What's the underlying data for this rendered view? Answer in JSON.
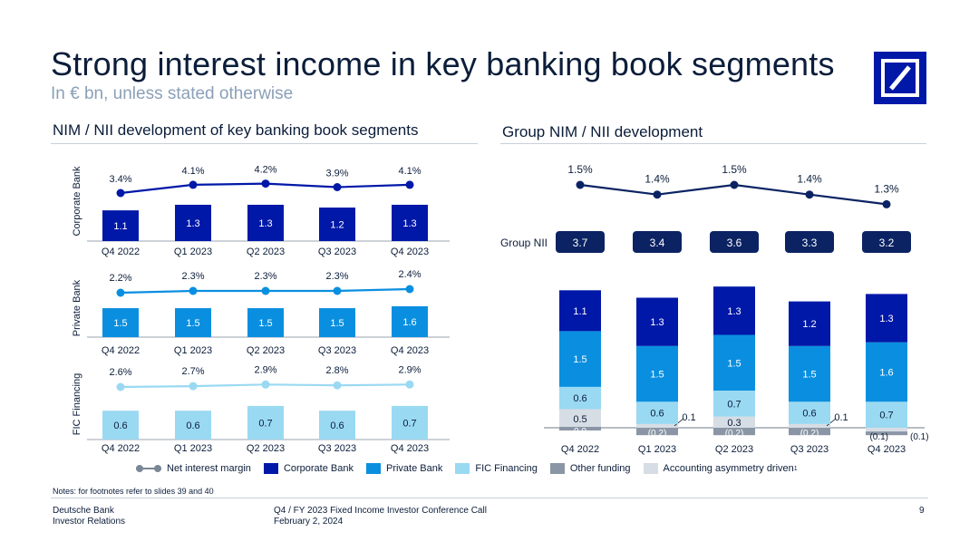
{
  "title": "Strong interest income in key banking book segments",
  "subtitle": "In € bn, unless stated otherwise",
  "left_section_title": "NIM / NII development of key banking book segments",
  "right_section_title": "Group NIM / NII development",
  "colors": {
    "corporate_bank": "#0018a8",
    "private_bank": "#0a8fe0",
    "fic_financing": "#9ad9f2",
    "other_funding": "#8a96a6",
    "accounting_asymmetry": "#d7dde4",
    "nim_line_corporate": "#0018a8",
    "nim_line_private": "#0a8fe0",
    "nim_line_fic": "#9ad9f2",
    "nim_line_group": "#0b2363",
    "group_nii_pill": "#0b2363",
    "legend_line": "#7a8796"
  },
  "logo": {
    "name": "deutsche-bank-logo"
  },
  "chart_data": [
    {
      "type": "bar",
      "panel": "Corporate Bank",
      "ylabel": "Corporate Bank",
      "categories": [
        "Q4 2022",
        "Q1 2023",
        "Q2 2023",
        "Q3 2023",
        "Q4 2023"
      ],
      "values": [
        1.1,
        1.3,
        1.3,
        1.2,
        1.3
      ],
      "value_labels": [
        "1.1",
        "1.3",
        "1.3",
        "1.2",
        "1.3"
      ],
      "nim_values": [
        3.4,
        4.1,
        4.2,
        3.9,
        4.1
      ],
      "nim_labels": [
        "3.4%",
        "4.1%",
        "4.2%",
        "3.9%",
        "4.1%"
      ]
    },
    {
      "type": "bar",
      "panel": "Private Bank",
      "ylabel": "Private Bank",
      "categories": [
        "Q4 2022",
        "Q1 2023",
        "Q2 2023",
        "Q3 2023",
        "Q4 2023"
      ],
      "values": [
        1.5,
        1.5,
        1.5,
        1.5,
        1.6
      ],
      "value_labels": [
        "1.5",
        "1.5",
        "1.5",
        "1.5",
        "1.6"
      ],
      "nim_values": [
        2.2,
        2.3,
        2.3,
        2.3,
        2.4
      ],
      "nim_labels": [
        "2.2%",
        "2.3%",
        "2.3%",
        "2.3%",
        "2.4%"
      ]
    },
    {
      "type": "bar",
      "panel": "FIC Financing",
      "ylabel": "FIC Financing",
      "categories": [
        "Q4 2022",
        "Q1 2023",
        "Q2 2023",
        "Q3 2023",
        "Q4 2023"
      ],
      "values": [
        0.6,
        0.6,
        0.7,
        0.6,
        0.7
      ],
      "value_labels": [
        "0.6",
        "0.6",
        "0.7",
        "0.6",
        "0.7"
      ],
      "nim_values": [
        2.6,
        2.7,
        2.9,
        2.8,
        2.9
      ],
      "nim_labels": [
        "2.6%",
        "2.7%",
        "2.9%",
        "2.8%",
        "2.9%"
      ]
    },
    {
      "type": "bar",
      "stacked": true,
      "panel": "Group",
      "categories": [
        "Q4 2022",
        "Q1 2023",
        "Q2 2023",
        "Q3 2023",
        "Q4 2023"
      ],
      "group_nii_label": "Group NII",
      "group_nii": [
        "3.7",
        "3.4",
        "3.6",
        "3.3",
        "3.2"
      ],
      "nim_values": [
        1.5,
        1.4,
        1.5,
        1.4,
        1.3
      ],
      "nim_labels": [
        "1.5%",
        "1.4%",
        "1.5%",
        "1.4%",
        "1.3%"
      ],
      "series": [
        {
          "name": "Accounting asymmetry driven",
          "values": [
            0.5,
            0.1,
            0.3,
            0.1,
            -0.1
          ],
          "labels": [
            "0.5",
            "0.1",
            "0.3",
            "0.1",
            "(0.1)"
          ],
          "color_key": "accounting_asymmetry"
        },
        {
          "name": "Other funding",
          "values": [
            0.0,
            -0.2,
            -0.2,
            -0.2,
            -0.1
          ],
          "labels": [
            "0.0",
            "(0.2)",
            "(0.2)",
            "(0.2)",
            "(0.1)"
          ],
          "color_key": "other_funding"
        },
        {
          "name": "FIC Financing",
          "values": [
            0.6,
            0.6,
            0.7,
            0.6,
            0.7
          ],
          "labels": [
            "0.6",
            "0.6",
            "0.7",
            "0.6",
            "0.7"
          ],
          "color_key": "fic_financing"
        },
        {
          "name": "Private Bank",
          "values": [
            1.5,
            1.5,
            1.5,
            1.5,
            1.6
          ],
          "labels": [
            "1.5",
            "1.5",
            "1.5",
            "1.5",
            "1.6"
          ],
          "color_key": "private_bank"
        },
        {
          "name": "Corporate Bank",
          "values": [
            1.1,
            1.3,
            1.3,
            1.2,
            1.3
          ],
          "labels": [
            "1.1",
            "1.3",
            "1.3",
            "1.2",
            "1.3"
          ],
          "color_key": "corporate_bank"
        }
      ]
    }
  ],
  "legend": [
    {
      "label": "Net interest margin",
      "kind": "line",
      "color_key": "legend_line"
    },
    {
      "label": "Corporate Bank",
      "kind": "box",
      "color_key": "corporate_bank"
    },
    {
      "label": "Private Bank",
      "kind": "box",
      "color_key": "private_bank"
    },
    {
      "label": "FIC Financing",
      "kind": "box",
      "color_key": "fic_financing"
    },
    {
      "label": "Other funding",
      "kind": "box",
      "color_key": "other_funding"
    },
    {
      "label": "Accounting asymmetry driven",
      "kind": "box",
      "color_key": "accounting_asymmetry",
      "superscript": "1"
    }
  ],
  "notes": "Notes: for footnotes refer to slides 39 and 40",
  "footer": {
    "company": "Deutsche Bank",
    "department": "Investor Relations",
    "event": "Q4 / FY 2023 Fixed Income Investor Conference Call",
    "date": "February 2, 2024",
    "page": "9"
  }
}
